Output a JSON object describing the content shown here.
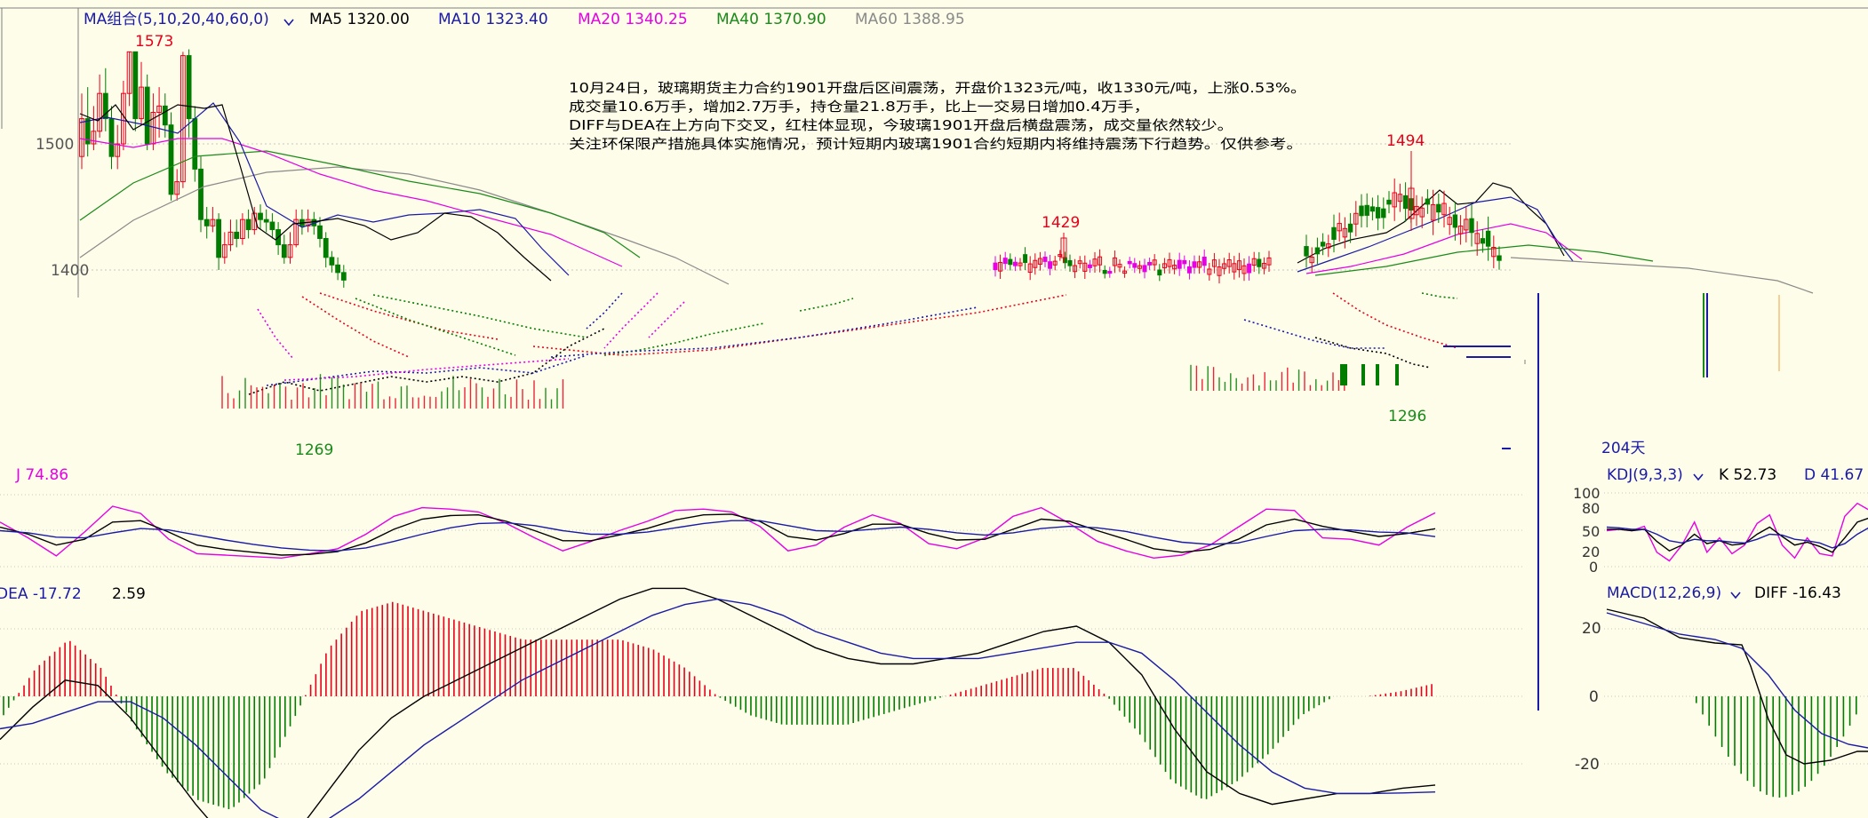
{
  "colors": {
    "bg": "#fefde9",
    "up": "#e8001a",
    "down": "#007d00",
    "ma5": "#000000",
    "ma10": "#1a1aa6",
    "ma20": "#e600e6",
    "ma40": "#1a8a1a",
    "ma60": "#8a8a8a",
    "grid": "#c8c8c8",
    "axis": "#808080",
    "text": "#222222",
    "kdj_j": "#e600e6",
    "kdj_k": "#000000",
    "kdj_d": "#1a1aa6"
  },
  "header": {
    "ma_group_label": "MA组合(5,10,20,40,60,0)",
    "ma5_label": "MA5 1320.00",
    "ma10_label": "MA10 1323.40",
    "ma20_label": "MA20 1340.25",
    "ma40_label": "MA40 1370.90",
    "ma60_label": "MA60 1388.95"
  },
  "annotation": {
    "lines": [
      "10月24日，玻璃期货主力合约1901开盘后区间震荡，开盘价1323元/吨，收1330元/吨，上涨0.53%。",
      "成交量10.6万手，增加2.7万手，持仓量21.8万手，比上一交易日增加0.4万手，",
      "DIFF与DEA在上方向下交叉，红柱体显现，今玻璃1901开盘后横盘震荡，成交量依然较少。",
      "关注环保限产措施具体实施情况，预计短期内玻璃1901合约短期内将维持震荡下行趋势。仅供参考。"
    ]
  },
  "price_axis": {
    "ticks": [
      "1500",
      "1400"
    ]
  },
  "price_marks": {
    "high1": "1573",
    "high2": "1429",
    "high3": "1494",
    "low1": "1269",
    "low2": "1296"
  },
  "kdj": {
    "j_label": "J 74.86",
    "right_title": "KDJ(9,3,3)",
    "k_label": "K 52.73",
    "d_label": "D 41.67",
    "right_ticks": [
      "100",
      "80",
      "50",
      "20",
      "0"
    ]
  },
  "macd": {
    "dea_label": "DEA -17.72",
    "macd_value": "2.59",
    "right_title": "MACD(12,26,9)",
    "diff_label": "DIFF -16.43",
    "right_ticks": [
      "20",
      "0",
      "-20"
    ]
  },
  "mini": {
    "days_label": "204天"
  },
  "chart_data": [
    {
      "type": "candlestick",
      "title": "",
      "ylabel": "",
      "yticks": [
        1500,
        1400
      ],
      "annotated_points": [
        {
          "label": "1573",
          "value": 1573
        },
        {
          "label": "1429",
          "value": 1429
        },
        {
          "label": "1494",
          "value": 1494
        },
        {
          "label": "1269",
          "value": 1269
        },
        {
          "label": "1296",
          "value": 1296
        }
      ],
      "ylim": [
        1378,
        1600
      ],
      "moving_averages": {
        "MA5": 1320.0,
        "MA10": 1323.4,
        "MA20": 1340.25,
        "MA40": 1370.9,
        "MA60": 1388.95
      },
      "candles_first_segment": [
        [
          1490,
          1520,
          1480,
          1540
        ],
        [
          1520,
          1500,
          1490,
          1545
        ],
        [
          1500,
          1510,
          1495,
          1530
        ],
        [
          1510,
          1540,
          1505,
          1555
        ],
        [
          1540,
          1520,
          1510,
          1560
        ],
        [
          1520,
          1490,
          1480,
          1530
        ],
        [
          1490,
          1500,
          1480,
          1515
        ],
        [
          1500,
          1540,
          1495,
          1550
        ],
        [
          1540,
          1573,
          1530,
          1573
        ],
        [
          1573,
          1520,
          1510,
          1573
        ],
        [
          1520,
          1545,
          1515,
          1565
        ],
        [
          1545,
          1500,
          1495,
          1555
        ],
        [
          1500,
          1525,
          1495,
          1540
        ],
        [
          1525,
          1530,
          1505,
          1545
        ],
        [
          1530,
          1515,
          1505,
          1540
        ],
        [
          1515,
          1460,
          1455,
          1525
        ],
        [
          1460,
          1470,
          1455,
          1480
        ],
        [
          1470,
          1570,
          1465,
          1573
        ],
        [
          1570,
          1520,
          1505,
          1575
        ],
        [
          1520,
          1480,
          1470,
          1530
        ],
        [
          1480,
          1440,
          1430,
          1490
        ],
        [
          1440,
          1435,
          1425,
          1450
        ],
        [
          1435,
          1440,
          1430,
          1450
        ],
        [
          1440,
          1410,
          1400,
          1445
        ],
        [
          1410,
          1420,
          1405,
          1430
        ],
        [
          1420,
          1430,
          1415,
          1440
        ],
        [
          1430,
          1425,
          1418,
          1440
        ],
        [
          1425,
          1440,
          1420,
          1445
        ],
        [
          1440,
          1432,
          1425,
          1448
        ],
        [
          1432,
          1445,
          1428,
          1450
        ],
        [
          1445,
          1440,
          1432,
          1452
        ],
        [
          1440,
          1438,
          1430,
          1448
        ],
        [
          1438,
          1432,
          1425,
          1445
        ],
        [
          1432,
          1420,
          1412,
          1438
        ],
        [
          1420,
          1410,
          1405,
          1428
        ],
        [
          1410,
          1420,
          1405,
          1430
        ],
        [
          1420,
          1440,
          1418,
          1448
        ],
        [
          1440,
          1435,
          1428,
          1448
        ],
        [
          1435,
          1440,
          1430,
          1448
        ],
        [
          1440,
          1435,
          1428,
          1446
        ],
        [
          1435,
          1425,
          1418,
          1442
        ],
        [
          1425,
          1410,
          1402,
          1430
        ],
        [
          1410,
          1404,
          1398,
          1415
        ],
        [
          1404,
          1398,
          1392,
          1410
        ],
        [
          1398,
          1392,
          1386,
          1404
        ]
      ]
    },
    {
      "type": "line",
      "title": "KDJ(9,3,3)",
      "series": [
        {
          "name": "J",
          "values": [
            62,
            40,
            15,
            48,
            84,
            74,
            38,
            18,
            16,
            14,
            12,
            18,
            25,
            45,
            70,
            82,
            80,
            76,
            60,
            40,
            22,
            35,
            50,
            63,
            78,
            80,
            76,
            56,
            22,
            30,
            55,
            72,
            60,
            32,
            25,
            40,
            70,
            82,
            60,
            35,
            22,
            12,
            16,
            30,
            55,
            80,
            78,
            40,
            38,
            30,
            55,
            74.86
          ]
        },
        {
          "name": "K",
          "values": [
            55,
            45,
            30,
            38,
            62,
            64,
            48,
            30,
            24,
            20,
            16,
            17,
            21,
            33,
            52,
            66,
            71,
            72,
            63,
            50,
            36,
            36,
            44,
            53,
            65,
            72,
            73,
            63,
            42,
            37,
            46,
            59,
            59,
            46,
            37,
            38,
            52,
            66,
            63,
            50,
            38,
            25,
            20,
            24,
            38,
            58,
            66,
            56,
            49,
            42,
            46,
            52.73
          ]
        },
        {
          "name": "D",
          "values": [
            50,
            47,
            41,
            40,
            47,
            53,
            51,
            44,
            37,
            31,
            26,
            23,
            22,
            26,
            35,
            45,
            54,
            60,
            61,
            57,
            50,
            45,
            45,
            48,
            54,
            60,
            64,
            64,
            57,
            50,
            49,
            52,
            55,
            52,
            47,
            44,
            47,
            53,
            56,
            54,
            49,
            41,
            34,
            31,
            33,
            42,
            50,
            52,
            51,
            48,
            47,
            41.67
          ]
        }
      ]
    },
    {
      "type": "bar",
      "title": "MACD(12,26,9)",
      "series": [
        {
          "name": "DIFF",
          "values": [
            -8,
            -2,
            3,
            2,
            -4,
            -12,
            -20,
            -27,
            -30,
            -26,
            -18,
            -10,
            -4,
            0,
            3,
            6,
            9,
            12,
            15,
            18,
            20,
            20,
            18,
            15,
            12,
            9,
            7,
            6,
            6,
            7,
            8,
            10,
            12,
            13,
            10,
            4,
            -6,
            -14,
            -18,
            -20,
            -19,
            -18,
            -18,
            -17,
            -16.43
          ]
        },
        {
          "name": "DEA",
          "values": [
            -6,
            -5,
            -3,
            -1,
            -1,
            -4,
            -9,
            -15,
            -21,
            -24,
            -23,
            -19,
            -14,
            -9,
            -5,
            -1,
            3,
            6,
            9,
            12,
            15,
            17,
            18,
            17,
            15,
            12,
            10,
            8,
            7,
            7,
            7,
            8,
            9,
            10,
            10,
            8,
            3,
            -3,
            -9,
            -14,
            -17,
            -18,
            -18,
            -17.9,
            -17.72
          ]
        },
        {
          "name": "MACD",
          "values": [
            -4,
            6,
            12,
            6,
            -6,
            -16,
            -22,
            -24,
            -18,
            -4,
            10,
            18,
            20,
            18,
            16,
            14,
            12,
            12,
            12,
            12,
            10,
            6,
            0,
            -4,
            -6,
            -6,
            -6,
            -4,
            -2,
            0,
            2,
            4,
            6,
            6,
            0,
            -8,
            -18,
            -22,
            -18,
            -12,
            -4,
            0,
            0,
            1,
            2.59
          ]
        }
      ],
      "yticks": [
        20,
        0,
        -20
      ]
    }
  ]
}
